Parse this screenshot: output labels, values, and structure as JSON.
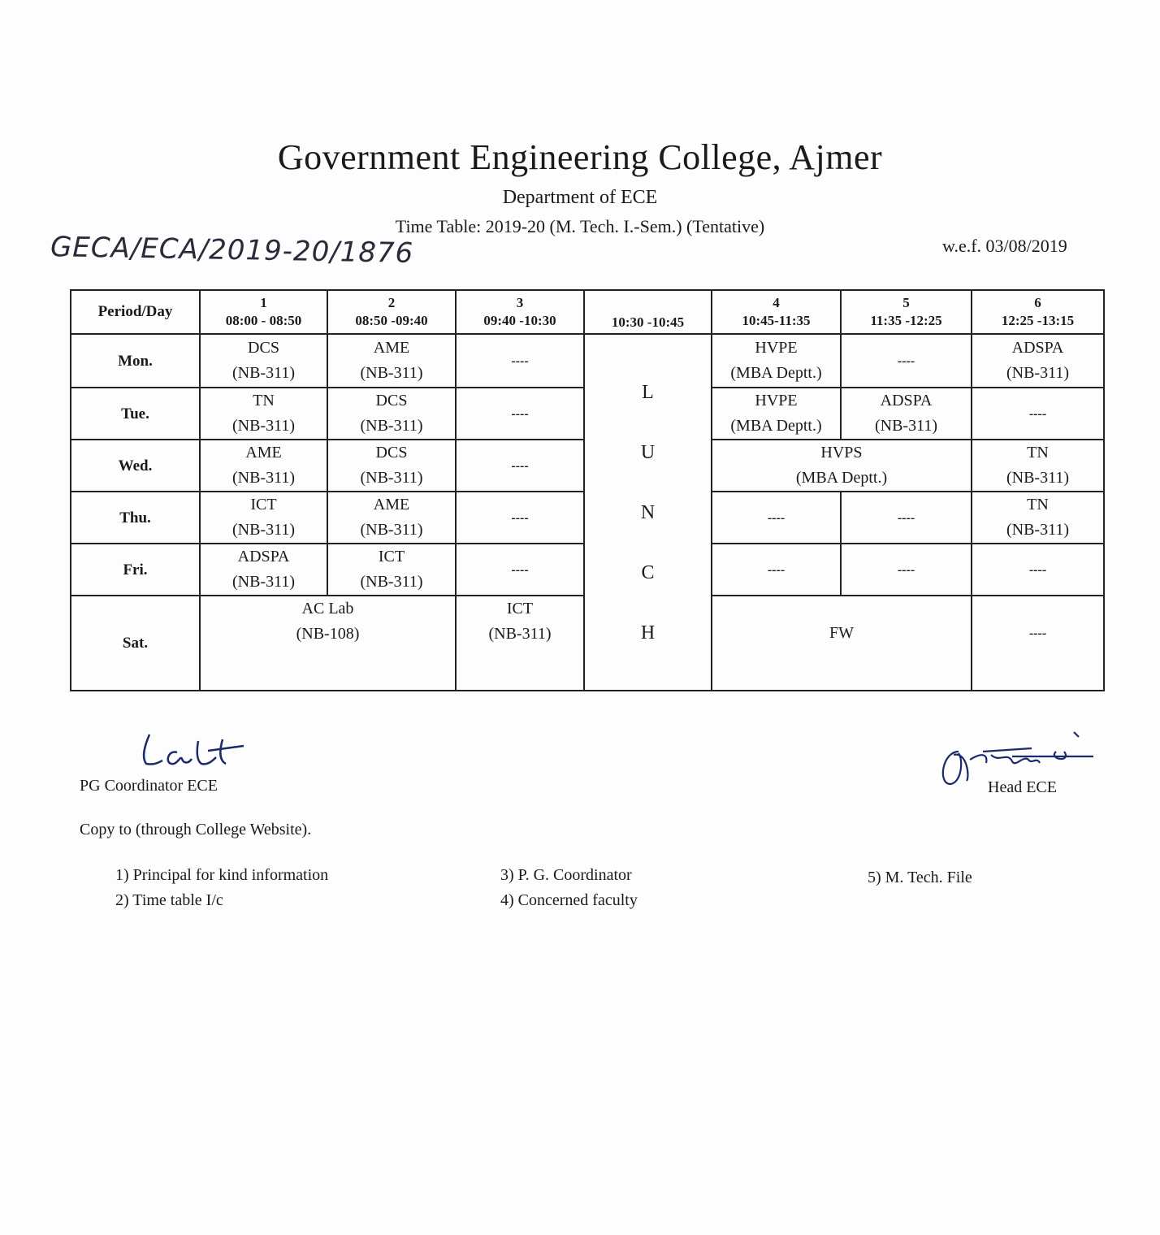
{
  "header": {
    "title": "Government Engineering College, Ajmer",
    "department": "Department of ECE",
    "timetable": "Time Table: 2019-20 (M. Tech. I.-Sem.) (Tentative)",
    "wef": "w.e.f. 03/08/2019",
    "reference_no": "GECA/ECA/2019-20/1876"
  },
  "table": {
    "corner": "Period/Day",
    "periods": [
      {
        "num": "1",
        "time": "08:00 - 08:50"
      },
      {
        "num": "2",
        "time": "08:50 -09:40"
      },
      {
        "num": "3",
        "time": "09:40 -10:30"
      },
      {
        "num": "",
        "time": "10:30 -10:45"
      },
      {
        "num": "4",
        "time": "10:45-11:35"
      },
      {
        "num": "5",
        "time": "11:35 -12:25"
      },
      {
        "num": "6",
        "time": "12:25 -13:15"
      }
    ],
    "lunch_letters": [
      "L",
      "U",
      "N",
      "C",
      "H"
    ],
    "empty": "----",
    "rows": [
      {
        "day": "Mon.",
        "p1": [
          "DCS",
          "(NB-311)"
        ],
        "p2": [
          "AME",
          "(NB-311)"
        ],
        "p3": "----",
        "p4": [
          "HVPE",
          "(MBA Deptt.)"
        ],
        "p5": "----",
        "p6": [
          "ADSPA",
          "(NB-311)"
        ]
      },
      {
        "day": "Tue.",
        "p1": [
          "TN",
          "(NB-311)"
        ],
        "p2": [
          "DCS",
          "(NB-311)"
        ],
        "p3": "----",
        "p4": [
          "HVPE",
          "(MBA Deptt.)"
        ],
        "p5": [
          "ADSPA",
          "(NB-311)"
        ],
        "p6": "----"
      },
      {
        "day": "Wed.",
        "p1": [
          "AME",
          "(NB-311)"
        ],
        "p2": [
          "DCS",
          "(NB-311)"
        ],
        "p3": "----",
        "p45": [
          "HVPS",
          "(MBA Deptt.)"
        ],
        "p6": [
          "TN",
          "(NB-311)"
        ]
      },
      {
        "day": "Thu.",
        "p1": [
          "ICT",
          "(NB-311)"
        ],
        "p2": [
          "AME",
          "(NB-311)"
        ],
        "p3": "----",
        "p4": "----",
        "p5": "----",
        "p6": [
          "TN",
          "(NB-311)"
        ]
      },
      {
        "day": "Fri.",
        "p1": [
          "ADSPA",
          "(NB-311)"
        ],
        "p2": [
          "ICT",
          "(NB-311)"
        ],
        "p3": "----",
        "p4": "----",
        "p5": "----",
        "p6": "----"
      },
      {
        "day": "Sat.",
        "p12": [
          "AC Lab",
          "(NB-108)"
        ],
        "p3": [
          "ICT",
          "(NB-311)"
        ],
        "p45": "FW",
        "p6": "----"
      }
    ]
  },
  "signatures": {
    "pg_coordinator": "PG Coordinator ECE",
    "head": "Head ECE"
  },
  "copy": {
    "heading": "Copy to (through College Website).",
    "items": [
      "1)   Principal for kind information",
      "2)   Time table I/c",
      "3)  P. G. Coordinator",
      "4) Concerned faculty",
      "5) M. Tech. File"
    ]
  }
}
